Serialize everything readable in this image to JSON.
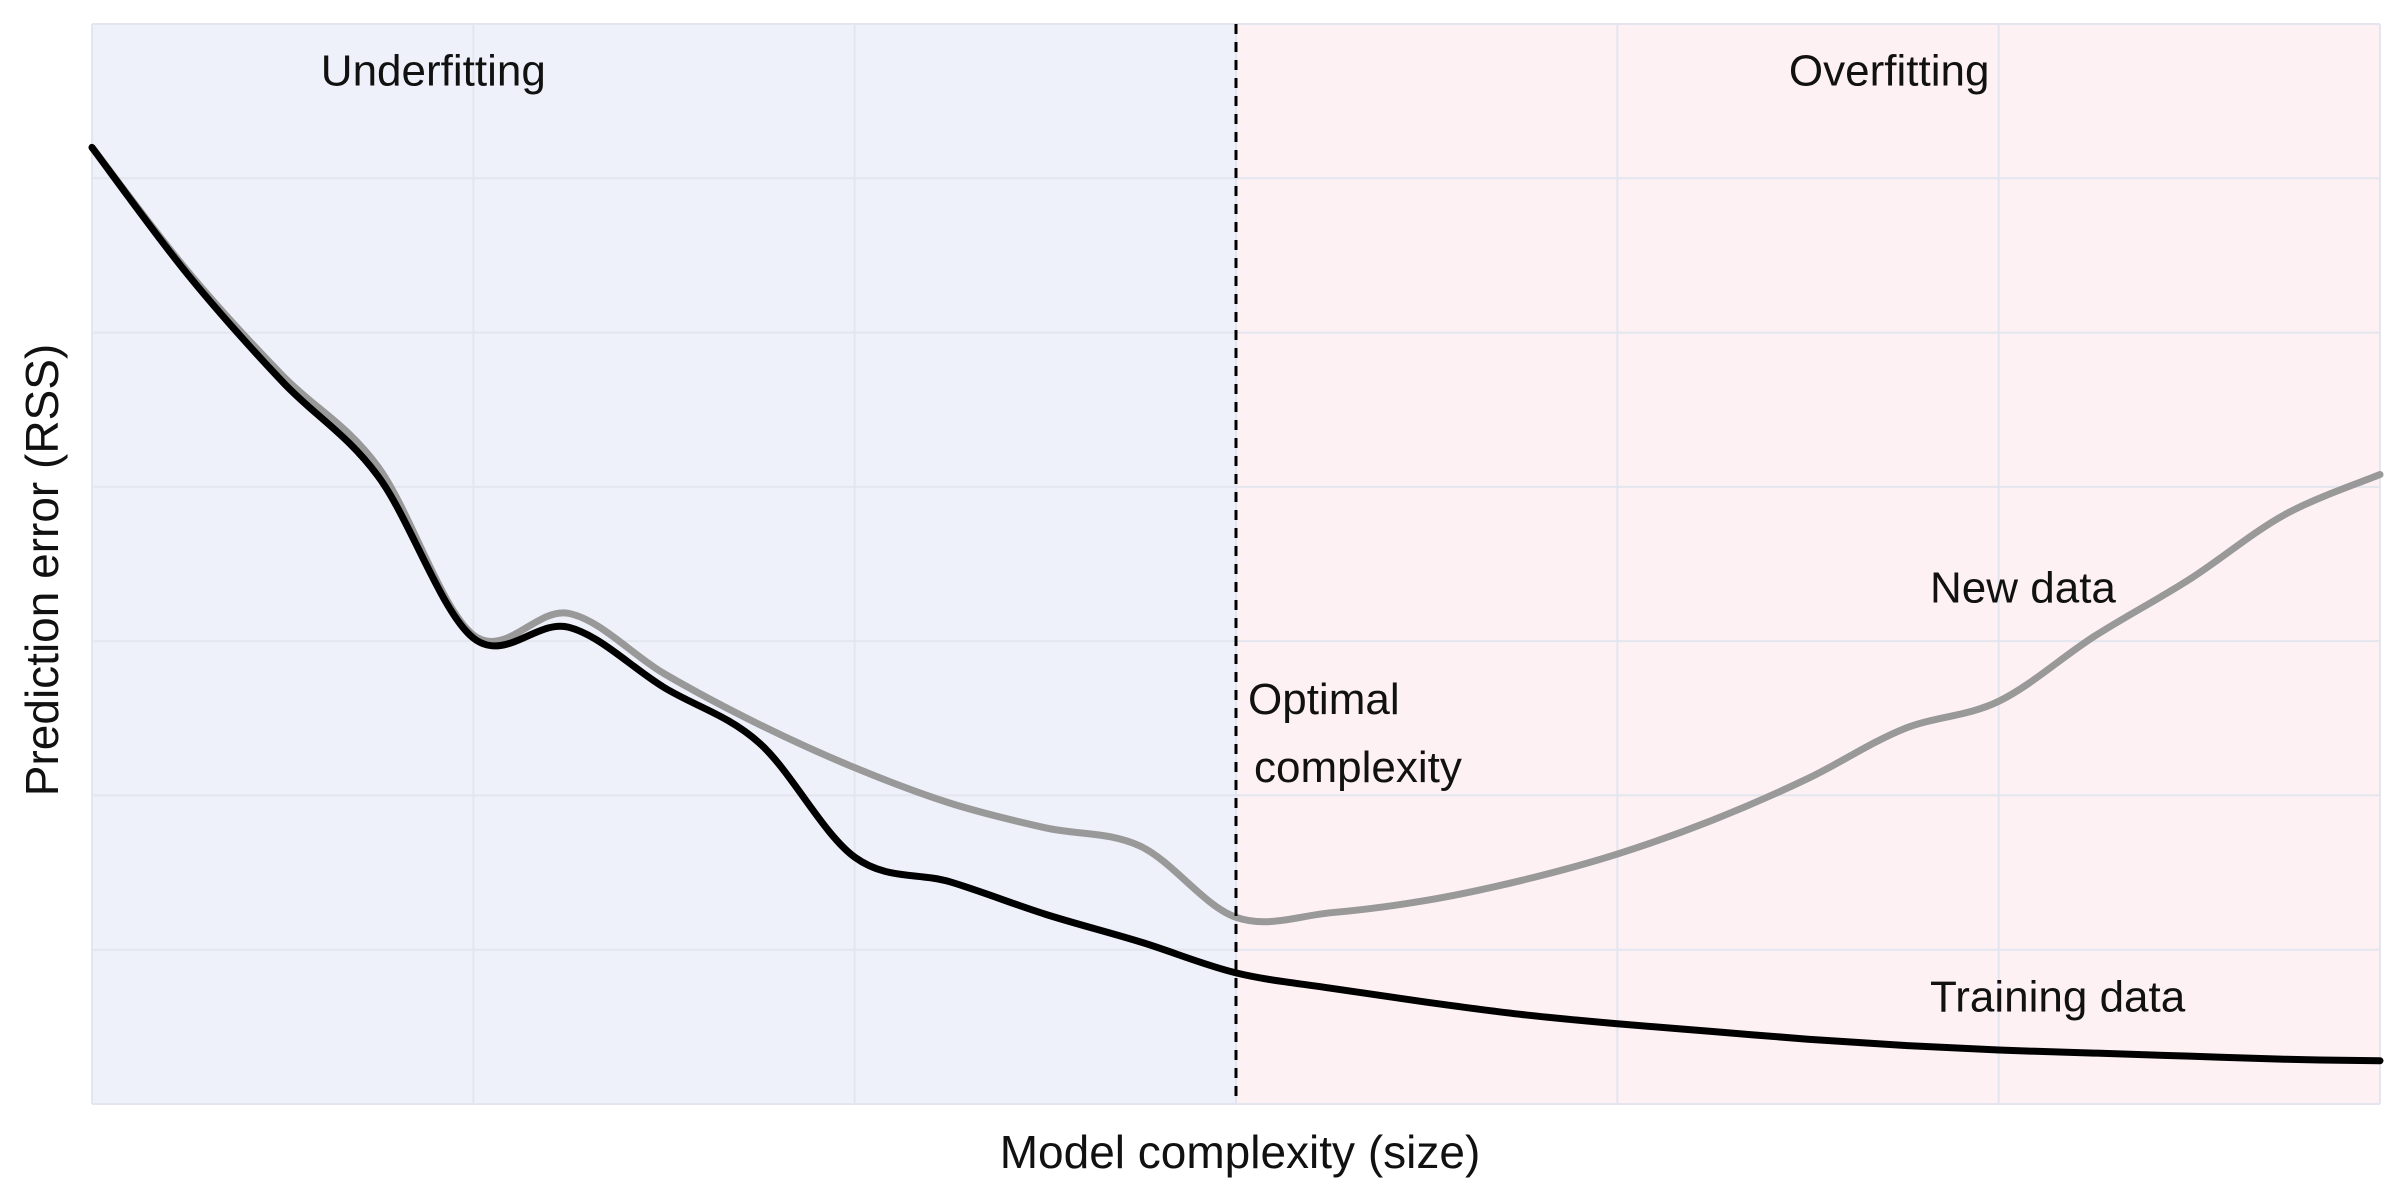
{
  "chart_data": {
    "type": "line",
    "title": "",
    "xlabel": "Model complexity (size)",
    "ylabel": "Prediction error (RSS)",
    "xlim": [
      0,
      6
    ],
    "ylim": [
      0,
      7
    ],
    "grid": true,
    "x_ticks": [
      0,
      1,
      2,
      3,
      4,
      5,
      6
    ],
    "y_ticks": [
      0,
      1,
      2,
      3,
      4,
      5,
      6,
      7
    ],
    "x_tick_labels": [
      "",
      "",
      "",
      "",
      "",
      "",
      ""
    ],
    "y_tick_labels": [
      "",
      "",
      "",
      "",
      "",
      "",
      "",
      ""
    ],
    "regions": [
      {
        "label": "Underfitting",
        "x_start": 0,
        "x_end": 3,
        "color": "#eef1f9"
      },
      {
        "label": "Overfitting",
        "x_start": 3,
        "x_end": 6,
        "color": "#fdf1f4"
      }
    ],
    "vline": {
      "x": 3,
      "label_lines": [
        "Optimal",
        "complexity"
      ]
    },
    "series": [
      {
        "name": "New data",
        "color": "#999999",
        "x": [
          0,
          0.25,
          0.5,
          0.75,
          1,
          1.25,
          1.5,
          1.75,
          2,
          2.25,
          2.5,
          2.75,
          3,
          3.25,
          3.5,
          3.75,
          4,
          4.25,
          4.5,
          4.75,
          5,
          5.25,
          5.5,
          5.75,
          6
        ],
        "y": [
          6.2,
          5.4,
          4.72,
          4.13,
          3.04,
          3.18,
          2.79,
          2.46,
          2.18,
          1.95,
          1.79,
          1.67,
          1.21,
          1.24,
          1.32,
          1.45,
          1.62,
          1.84,
          2.11,
          2.43,
          2.61,
          3.03,
          3.4,
          3.82,
          4.08
        ]
      },
      {
        "name": "Training data",
        "color": "#000000",
        "x": [
          0,
          0.25,
          0.5,
          0.75,
          1,
          1.25,
          1.5,
          1.75,
          2,
          2.25,
          2.5,
          2.75,
          3,
          3.25,
          3.5,
          3.75,
          4,
          4.25,
          4.5,
          4.75,
          5,
          5.25,
          5.5,
          5.75,
          6
        ],
        "y": [
          6.2,
          5.38,
          4.68,
          4.07,
          3.02,
          3.09,
          2.7,
          2.34,
          1.6,
          1.44,
          1.23,
          1.05,
          0.85,
          0.75,
          0.66,
          0.58,
          0.52,
          0.47,
          0.42,
          0.38,
          0.35,
          0.33,
          0.31,
          0.29,
          0.28
        ]
      }
    ],
    "annotations": [
      {
        "text": "Underfitting",
        "x": 0.6,
        "y": 6.6,
        "anchor": "start"
      },
      {
        "text": "Overfitting",
        "x": 4.45,
        "y": 6.6,
        "anchor": "start"
      },
      {
        "text": "New data",
        "x": 4.82,
        "y": 3.25,
        "anchor": "start"
      },
      {
        "text": "Training data",
        "x": 4.82,
        "y": 0.6,
        "anchor": "start"
      }
    ]
  }
}
